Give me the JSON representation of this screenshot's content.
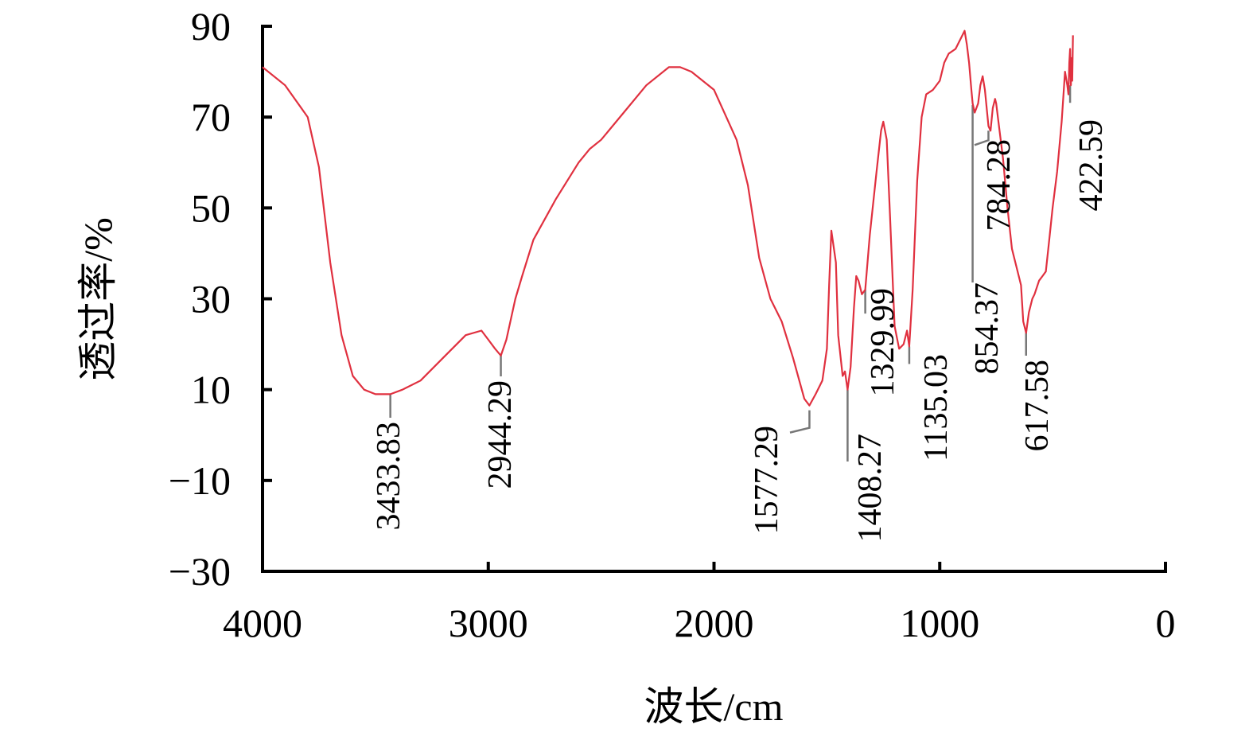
{
  "chart_data": {
    "type": "line",
    "xlabel": "波长/cm",
    "ylabel": "透过率/%",
    "xlim": [
      4000,
      0
    ],
    "ylim": [
      -30,
      90
    ],
    "x_ticks": [
      4000,
      3000,
      2000,
      1000,
      0
    ],
    "x_tick_labels": [
      "4000",
      "3000",
      "2000",
      "1000",
      "0"
    ],
    "y_ticks": [
      90,
      70,
      50,
      30,
      10,
      -10,
      -30
    ],
    "y_tick_labels": [
      "90",
      "70",
      "50",
      "30",
      "10",
      "−10",
      "−30"
    ],
    "line_color": "#e0303f",
    "series": [
      {
        "x": [
          4000,
          3900,
          3800,
          3750,
          3700,
          3650,
          3600,
          3550,
          3500,
          3433.83,
          3380,
          3300,
          3200,
          3100,
          3030,
          3000,
          2970,
          2944.29,
          2920,
          2880,
          2850,
          2800,
          2700,
          2600,
          2550,
          2500,
          2400,
          2300,
          2200,
          2150,
          2100,
          2050,
          2000,
          1900,
          1850,
          1800,
          1750,
          1700,
          1650,
          1600,
          1577.29,
          1550,
          1520,
          1500,
          1490,
          1480,
          1460,
          1450,
          1430,
          1420,
          1408.27,
          1395,
          1380,
          1370,
          1360,
          1345,
          1329.99,
          1310,
          1280,
          1260,
          1250,
          1235,
          1220,
          1200,
          1180,
          1160,
          1145,
          1135.03,
          1120,
          1100,
          1080,
          1060,
          1030,
          1000,
          980,
          960,
          930,
          910,
          890,
          880,
          870,
          860,
          854.37,
          845,
          830,
          820,
          810,
          800,
          790,
          784.28,
          775,
          765,
          755,
          750,
          740,
          720,
          700,
          680,
          660,
          640,
          630,
          617.58,
          605,
          590,
          580,
          560,
          545,
          530,
          515,
          500,
          480,
          460,
          445,
          435,
          430,
          426,
          422.59,
          419,
          416,
          413,
          410
        ],
        "y": [
          81,
          77,
          70,
          59,
          38,
          22,
          13,
          10,
          9,
          9,
          10,
          12,
          17,
          22,
          23,
          21,
          19,
          17.5,
          21,
          30,
          35,
          43,
          52,
          60,
          63,
          65,
          71,
          77,
          81,
          81,
          80,
          78,
          76,
          65,
          55,
          39,
          30,
          25,
          17,
          8,
          6.5,
          9,
          12,
          19,
          33,
          45,
          38,
          22,
          13,
          14,
          10,
          15,
          28,
          35,
          34,
          31,
          32,
          44,
          58,
          67,
          69,
          65,
          48,
          24,
          19,
          20,
          23,
          19.5,
          32,
          56,
          70,
          75,
          76,
          78,
          82,
          84,
          85,
          87,
          89,
          86,
          82,
          76,
          73,
          71,
          73,
          77,
          79,
          76,
          71,
          68,
          67,
          72,
          74,
          73,
          69,
          61,
          50,
          41,
          37,
          33,
          25,
          22.5,
          27,
          30,
          31,
          34,
          35,
          36,
          43,
          50,
          58,
          69,
          80,
          77,
          75,
          82,
          85,
          77,
          83,
          78,
          88
        ]
      }
    ],
    "annotations": [
      {
        "text": "3433.83",
        "x": 3433.83,
        "y": 9
      },
      {
        "text": "2944.29",
        "x": 2944.29,
        "y": 17.5
      },
      {
        "text": "1577.29",
        "x": 1577.29,
        "y": 6.5
      },
      {
        "text": "1408.27",
        "x": 1408.27,
        "y": 10
      },
      {
        "text": "1329.99",
        "x": 1329.99,
        "y": 32
      },
      {
        "text": "1135.03",
        "x": 1135.03,
        "y": 19.5
      },
      {
        "text": "854.37",
        "x": 854.37,
        "y": 73
      },
      {
        "text": "784.28",
        "x": 784.28,
        "y": 67
      },
      {
        "text": "617.58",
        "x": 617.58,
        "y": 22.5
      },
      {
        "text": "422.59",
        "x": 422.59,
        "y": 77
      }
    ]
  }
}
